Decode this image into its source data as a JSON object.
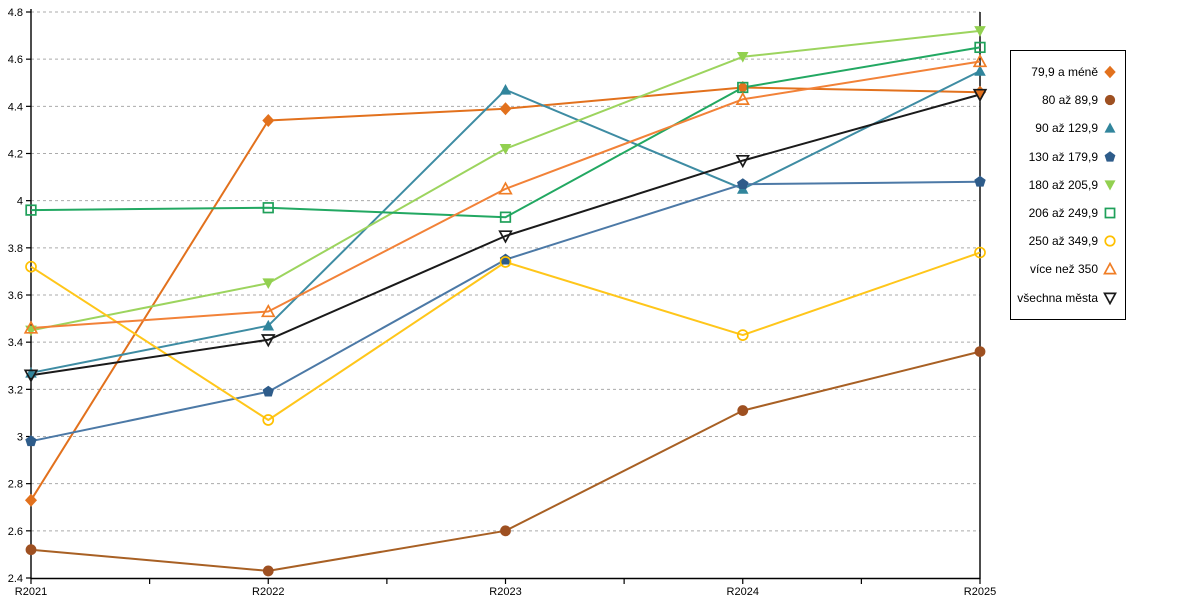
{
  "chart_data": {
    "type": "line",
    "categories": [
      "R2021",
      "R2022",
      "R2023",
      "R2024",
      "R2025"
    ],
    "ylim": [
      2.4,
      4.8
    ],
    "ytick_step": 0.2,
    "grid": "horizontal-dashed",
    "legend_position": "right",
    "axis_color": "#000000",
    "gridline_color": "#ababab",
    "series": [
      {
        "name": "79,9 a méně",
        "marker": "diamond-filled",
        "color": "#E2711D",
        "line_color": "#E2711D",
        "values": [
          2.73,
          4.34,
          4.39,
          4.48,
          4.46
        ]
      },
      {
        "name": "80 až 89,9",
        "marker": "circle-filled",
        "color": "#9E5021",
        "line_color": "#A86024",
        "values": [
          2.52,
          2.43,
          2.6,
          3.11,
          3.36
        ]
      },
      {
        "name": "90 až 129,9",
        "marker": "triangle-up-filled",
        "color": "#31859C",
        "line_color": "#3E8CA3",
        "values": [
          3.27,
          3.47,
          4.47,
          4.05,
          4.55
        ]
      },
      {
        "name": "130 až 179,9",
        "marker": "pentagon-filled",
        "color": "#2E5C8A",
        "line_color": "#4C79A6",
        "values": [
          2.98,
          3.19,
          3.75,
          4.07,
          4.08
        ]
      },
      {
        "name": "180 až 205,9",
        "marker": "triangle-down-filled",
        "color": "#92D050",
        "line_color": "#9CD45E",
        "values": [
          3.45,
          3.65,
          4.22,
          4.61,
          4.72
        ]
      },
      {
        "name": "206 až 249,9",
        "marker": "square-open",
        "color": "#1FA05A",
        "line_color": "#22A862",
        "values": [
          3.96,
          3.97,
          3.93,
          4.48,
          4.65
        ]
      },
      {
        "name": "250 až 349,9",
        "marker": "circle-open",
        "color": "#FFC000",
        "line_color": "#FFC61A",
        "values": [
          3.72,
          3.07,
          3.74,
          3.43,
          3.78
        ]
      },
      {
        "name": "více než 350",
        "marker": "triangle-up-open",
        "color": "#F07E26",
        "line_color": "#F28238",
        "values": [
          3.46,
          3.53,
          4.05,
          4.43,
          4.59
        ]
      },
      {
        "name": "všechna města",
        "marker": "triangle-down-open",
        "color": "#1A1A1A",
        "line_color": "#1A1A1A",
        "values": [
          3.26,
          3.41,
          3.85,
          4.17,
          4.45
        ]
      }
    ]
  }
}
